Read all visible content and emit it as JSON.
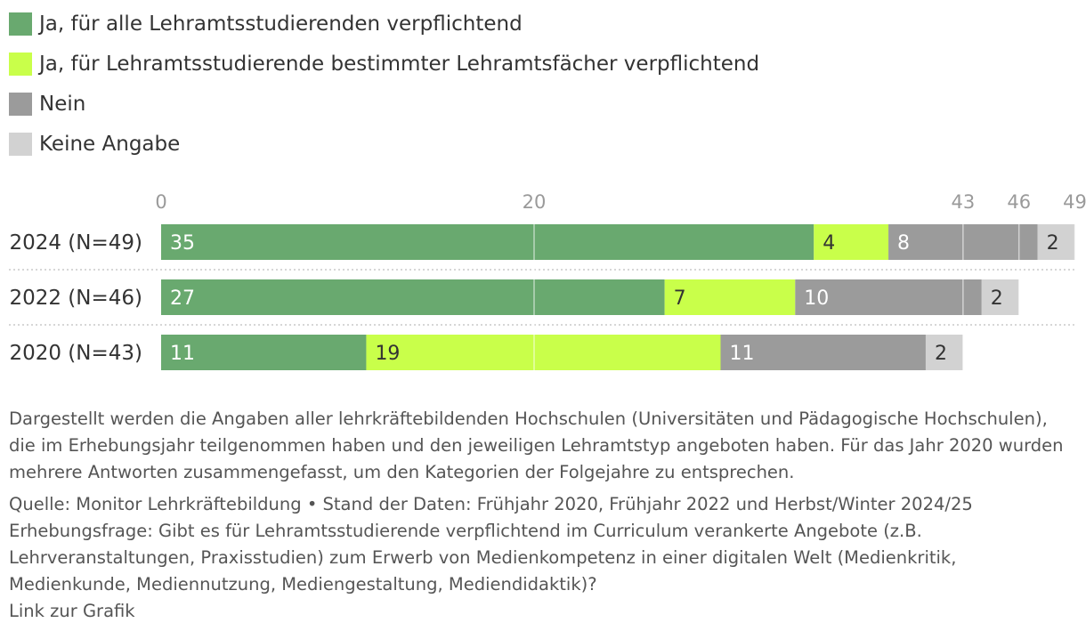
{
  "legend": [
    {
      "label": "Ja, für alle Lehramtsstudierenden verpflichtend",
      "color": "#69a96f"
    },
    {
      "label": "Ja, für Lehramtsstudierende bestimmter Lehramtsfächer verpflichtend",
      "color": "#c9ff4a"
    },
    {
      "label": "Nein",
      "color": "#9b9b9b"
    },
    {
      "label": "Keine Angabe",
      "color": "#d2d2d2"
    }
  ],
  "chart_data": {
    "type": "bar",
    "orientation": "horizontal",
    "stacked": true,
    "title": "",
    "xlabel": "",
    "ylabel": "",
    "xlim": [
      0,
      49
    ],
    "ticks": [
      {
        "value": 0,
        "label": "0"
      },
      {
        "value": 20,
        "label": "20"
      },
      {
        "value": 43,
        "label": "43"
      },
      {
        "value": 46,
        "label": "46"
      },
      {
        "value": 49,
        "label": "49"
      }
    ],
    "grid": true,
    "categories": [
      "2024 (N=49)",
      "2022 (N=46)",
      "2020 (N=43)"
    ],
    "series": [
      {
        "name": "Ja, für alle Lehramtsstudierenden verpflichtend",
        "color": "#69a96f",
        "values": [
          35,
          27,
          11
        ]
      },
      {
        "name": "Ja, für Lehramtsstudierende bestimmter Lehramtsfächer verpflichtend",
        "color": "#c9ff4a",
        "values": [
          4,
          7,
          19
        ]
      },
      {
        "name": "Nein",
        "color": "#9b9b9b",
        "values": [
          8,
          10,
          11
        ]
      },
      {
        "name": "Keine Angabe",
        "color": "#d2d2d2",
        "values": [
          2,
          2,
          2
        ]
      }
    ],
    "label_colors": [
      "#ffffff",
      "#333333",
      "#ffffff",
      "#333333"
    ]
  },
  "notes": {
    "description": "Dargestellt werden die Angaben aller lehrkräftebildenden Hochschulen (Universitäten und Pädagogische Hochschulen), die im Erhebungsjahr teilgenommen haben und den jeweiligen Lehramtstyp angeboten haben. Für das Jahr 2020 wurden mehrere Antworten zusammengefasst, um den Kategorien der Folgejahre zu entsprechen.",
    "source": "Quelle: Monitor Lehrkräftebildung • Stand der Daten: Frühjahr 2020, Frühjahr 2022 und Herbst/Winter 2024/25",
    "question": "Erhebungsfrage: Gibt es für Lehramtsstudierende verpflichtend im Curriculum verankerte Angebote (z.B. Lehrveranstaltungen, Praxisstudien) zum Erwerb von Medienkompetenz in einer digitalen Welt (Medienkritik, Medienkunde, Mediennutzung, Mediengestaltung, Mediendidaktik)?",
    "link": "Link zur Grafik"
  }
}
